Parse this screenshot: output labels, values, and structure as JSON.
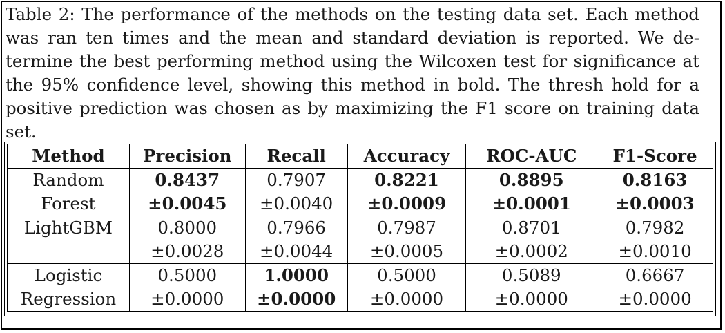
{
  "caption": {
    "lines": [
      "Table 2: The performance of the methods on the testing data set. Each method",
      "was ran ten times and the mean and standard deviation is reported. We de-",
      "termine the best performing method using the Wilcoxen test for significance at",
      "the 95% confidence level, showing this method in bold. The thresh hold for a",
      "positive prediction was chosen as by maximizing the F1 score on training data",
      "set."
    ]
  },
  "table": {
    "headers": [
      "Method",
      "Precision",
      "Recall",
      "Accuracy",
      "ROC-AUC",
      "F1-Score"
    ],
    "rows": [
      {
        "method": [
          "Random",
          "Forest"
        ],
        "cells": [
          {
            "mean": "0.8437",
            "std": "±0.0045",
            "bold": true
          },
          {
            "mean": "0.7907",
            "std": "±0.0040",
            "bold": false
          },
          {
            "mean": "0.8221",
            "std": "±0.0009",
            "bold": true
          },
          {
            "mean": "0.8895",
            "std": "±0.0001",
            "bold": true
          },
          {
            "mean": "0.8163",
            "std": "±0.0003",
            "bold": true
          }
        ]
      },
      {
        "method": [
          "LightGBM",
          ""
        ],
        "cells": [
          {
            "mean": "0.8000",
            "std": "±0.0028",
            "bold": false
          },
          {
            "mean": "0.7966",
            "std": "±0.0044",
            "bold": false
          },
          {
            "mean": "0.7987",
            "std": "±0.0005",
            "bold": false
          },
          {
            "mean": "0.8701",
            "std": "±0.0002",
            "bold": false
          },
          {
            "mean": "0.7982",
            "std": "±0.0010",
            "bold": false
          }
        ]
      },
      {
        "method": [
          "Logistic",
          "Regression"
        ],
        "cells": [
          {
            "mean": "0.5000",
            "std": "±0.0000",
            "bold": false
          },
          {
            "mean": "1.0000",
            "std": "±0.0000",
            "bold": true
          },
          {
            "mean": "0.5000",
            "std": "±0.0000",
            "bold": false
          },
          {
            "mean": "0.5089",
            "std": "±0.0000",
            "bold": false
          },
          {
            "mean": "0.6667",
            "std": "±0.0000",
            "bold": false
          }
        ]
      }
    ]
  }
}
